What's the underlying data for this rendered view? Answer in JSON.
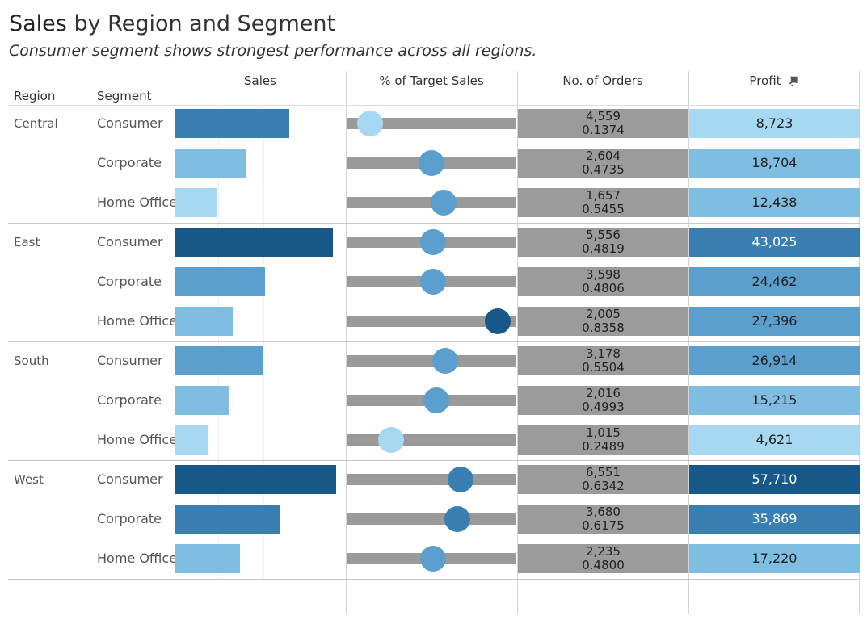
{
  "title": {
    "bold": "Sales",
    "rest": " by Region and Segment"
  },
  "subtitle": "Consumer segment shows strongest performance across all regions.",
  "headers": {
    "region": "Region",
    "segment": "Segment",
    "sales": "Sales",
    "target": "% of Target Sales",
    "orders": "No. of Orders",
    "profit": "Profit"
  },
  "icons": {
    "pin": "pin-icon"
  },
  "colors": {
    "darkest": "#175888",
    "dark": "#3a7fb1",
    "medium": "#5a9fcd",
    "light": "#80bde3",
    "lightest": "#a7d8f2",
    "track": "#9a9a9a",
    "orders_bg": "#9b9b9b"
  },
  "regions": [
    {
      "name": "Central",
      "segments": [
        "Consumer",
        "Corporate",
        "Home Office"
      ]
    },
    {
      "name": "East",
      "segments": [
        "Consumer",
        "Corporate",
        "Home Office"
      ]
    },
    {
      "name": "South",
      "segments": [
        "Consumer",
        "Corporate",
        "Home Office"
      ]
    },
    {
      "name": "West",
      "segments": [
        "Consumer",
        "Corporate",
        "Home Office"
      ]
    }
  ],
  "chart_data": {
    "type": "table",
    "title": "Sales by Region and Segment",
    "subtitle": "Consumer segment shows strongest performance across all regions.",
    "columns": [
      "Region",
      "Segment",
      "Sales",
      "% of Target Sales",
      "No. of Orders",
      "Profit"
    ],
    "sales_axis_max": 370000,
    "target_axis_range": [
      0,
      1
    ],
    "rows": [
      {
        "region": "Central",
        "segment": "Consumer",
        "sales": 253000,
        "target": 0.14,
        "orders": "4,559",
        "ratio": "0.1374",
        "profit": "8,723",
        "profit_value": 8723
      },
      {
        "region": "Central",
        "segment": "Corporate",
        "sales": 158000,
        "target": 0.5,
        "orders": "2,604",
        "ratio": "0.4735",
        "profit": "18,704",
        "profit_value": 18704
      },
      {
        "region": "Central",
        "segment": "Home Office",
        "sales": 91000,
        "target": 0.57,
        "orders": "1,657",
        "ratio": "0.5455",
        "profit": "12,438",
        "profit_value": 12438
      },
      {
        "region": "East",
        "segment": "Consumer",
        "sales": 350000,
        "target": 0.51,
        "orders": "5,556",
        "ratio": "0.4819",
        "profit": "43,025",
        "profit_value": 43025
      },
      {
        "region": "East",
        "segment": "Corporate",
        "sales": 200000,
        "target": 0.51,
        "orders": "3,598",
        "ratio": "0.4806",
        "profit": "24,462",
        "profit_value": 24462
      },
      {
        "region": "East",
        "segment": "Home Office",
        "sales": 127000,
        "target": 0.89,
        "orders": "2,005",
        "ratio": "0.8358",
        "profit": "27,396",
        "profit_value": 27396
      },
      {
        "region": "South",
        "segment": "Consumer",
        "sales": 195000,
        "target": 0.58,
        "orders": "3,178",
        "ratio": "0.5504",
        "profit": "26,914",
        "profit_value": 26914
      },
      {
        "region": "South",
        "segment": "Corporate",
        "sales": 121000,
        "target": 0.53,
        "orders": "2,016",
        "ratio": "0.4993",
        "profit": "15,215",
        "profit_value": 15215
      },
      {
        "region": "South",
        "segment": "Home Office",
        "sales": 74000,
        "target": 0.26,
        "orders": "1,015",
        "ratio": "0.2489",
        "profit": "4,621",
        "profit_value": 4621
      },
      {
        "region": "West",
        "segment": "Consumer",
        "sales": 357000,
        "target": 0.67,
        "orders": "6,551",
        "ratio": "0.6342",
        "profit": "57,710",
        "profit_value": 57710
      },
      {
        "region": "West",
        "segment": "Corporate",
        "sales": 232000,
        "target": 0.65,
        "orders": "3,680",
        "ratio": "0.6175",
        "profit": "35,869",
        "profit_value": 35869
      },
      {
        "region": "West",
        "segment": "Home Office",
        "sales": 144000,
        "target": 0.51,
        "orders": "2,235",
        "ratio": "0.4800",
        "profit": "17,220",
        "profit_value": 17220
      }
    ]
  }
}
